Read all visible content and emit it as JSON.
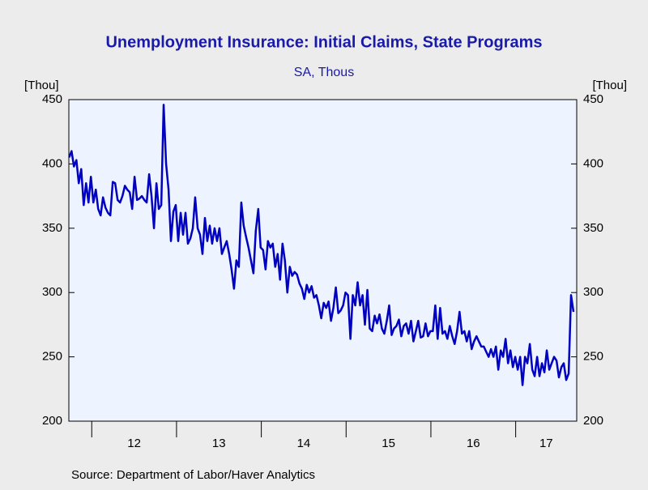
{
  "chart_data": {
    "type": "line",
    "title": "Unemployment Insurance: Initial Claims, State Programs",
    "subtitle": "SA, Thous",
    "ylabel": "[Thou]",
    "source": "Source:  Department of Labor/Haver Analytics",
    "color": "#0000c0",
    "xlim": [
      2011.73,
      2017.72
    ],
    "xticks": [
      {
        "value": 2012,
        "label": "12"
      },
      {
        "value": 2013,
        "label": "13"
      },
      {
        "value": 2014,
        "label": "14"
      },
      {
        "value": 2015,
        "label": "15"
      },
      {
        "value": 2016,
        "label": "16"
      },
      {
        "value": 2017,
        "label": "17"
      }
    ],
    "ylim": [
      200,
      450
    ],
    "yticks": [
      200,
      250,
      300,
      350,
      400,
      450
    ],
    "x": [
      2011.733,
      2011.762,
      2011.79,
      2011.819,
      2011.847,
      2011.876,
      2011.905,
      2011.933,
      2011.962,
      2011.99,
      2012.019,
      2012.048,
      2012.076,
      2012.105,
      2012.133,
      2012.162,
      2012.191,
      2012.219,
      2012.248,
      2012.276,
      2012.305,
      2012.334,
      2012.362,
      2012.391,
      2012.419,
      2012.448,
      2012.477,
      2012.505,
      2012.534,
      2012.562,
      2012.591,
      2012.62,
      2012.648,
      2012.677,
      2012.705,
      2012.734,
      2012.763,
      2012.791,
      2012.82,
      2012.848,
      2012.877,
      2012.906,
      2012.934,
      2012.963,
      2012.991,
      2013.02,
      2013.049,
      2013.077,
      2013.106,
      2013.134,
      2013.163,
      2013.192,
      2013.22,
      2013.249,
      2013.277,
      2013.306,
      2013.335,
      2013.363,
      2013.392,
      2013.42,
      2013.449,
      2013.478,
      2013.506,
      2013.535,
      2013.563,
      2013.592,
      2013.621,
      2013.649,
      2013.678,
      2013.706,
      2013.735,
      2013.764,
      2013.792,
      2013.821,
      2013.849,
      2013.878,
      2013.907,
      2013.935,
      2013.964,
      2013.992,
      2014.021,
      2014.05,
      2014.078,
      2014.107,
      2014.135,
      2014.164,
      2014.193,
      2014.221,
      2014.25,
      2014.278,
      2014.307,
      2014.336,
      2014.364,
      2014.393,
      2014.421,
      2014.45,
      2014.479,
      2014.507,
      2014.536,
      2014.564,
      2014.593,
      2014.622,
      2014.65,
      2014.679,
      2014.707,
      2014.736,
      2014.765,
      2014.793,
      2014.822,
      2014.85,
      2014.879,
      2014.908,
      2014.936,
      2014.965,
      2014.993,
      2015.022,
      2015.051,
      2015.079,
      2015.108,
      2015.136,
      2015.165,
      2015.194,
      2015.222,
      2015.251,
      2015.279,
      2015.308,
      2015.337,
      2015.365,
      2015.394,
      2015.422,
      2015.451,
      2015.48,
      2015.508,
      2015.537,
      2015.565,
      2015.594,
      2015.623,
      2015.651,
      2015.68,
      2015.708,
      2015.737,
      2015.766,
      2015.794,
      2015.823,
      2015.851,
      2015.88,
      2015.909,
      2015.937,
      2015.966,
      2015.994,
      2016.023,
      2016.052,
      2016.08,
      2016.109,
      2016.137,
      2016.166,
      2016.195,
      2016.223,
      2016.252,
      2016.28,
      2016.309,
      2016.338,
      2016.366,
      2016.395,
      2016.423,
      2016.452,
      2016.481,
      2016.509,
      2016.538,
      2016.566,
      2016.595,
      2016.624,
      2016.652,
      2016.681,
      2016.709,
      2016.738,
      2016.767,
      2016.795,
      2016.824,
      2016.852,
      2016.881,
      2016.91,
      2016.938,
      2016.967,
      2016.995,
      2017.024,
      2017.053,
      2017.081,
      2017.11,
      2017.138,
      2017.167,
      2017.196,
      2017.224,
      2017.253,
      2017.281,
      2017.31,
      2017.339,
      2017.367,
      2017.396,
      2017.424,
      2017.453,
      2017.482,
      2017.51,
      2017.539,
      2017.567,
      2017.596,
      2017.625,
      2017.653,
      2017.682
    ],
    "values": [
      405,
      410,
      398,
      403,
      385,
      396,
      368,
      385,
      370,
      390,
      370,
      380,
      365,
      360,
      374,
      366,
      362,
      360,
      386,
      385,
      372,
      370,
      375,
      383,
      380,
      378,
      365,
      390,
      372,
      373,
      375,
      372,
      370,
      392,
      375,
      350,
      385,
      365,
      368,
      446,
      400,
      380,
      340,
      363,
      368,
      340,
      362,
      345,
      362,
      338,
      342,
      350,
      374,
      350,
      345,
      330,
      358,
      340,
      352,
      338,
      350,
      340,
      350,
      330,
      335,
      340,
      330,
      318,
      303,
      325,
      320,
      370,
      352,
      343,
      335,
      325,
      315,
      348,
      365,
      335,
      333,
      318,
      340,
      335,
      338,
      320,
      330,
      310,
      338,
      325,
      300,
      320,
      313,
      316,
      314,
      307,
      303,
      295,
      306,
      300,
      305,
      296,
      298,
      290,
      280,
      292,
      288,
      293,
      278,
      288,
      304,
      284,
      286,
      290,
      300,
      298,
      264,
      298,
      290,
      308,
      290,
      298,
      275,
      302,
      272,
      270,
      282,
      276,
      283,
      272,
      268,
      278,
      290,
      267,
      272,
      274,
      279,
      266,
      274,
      276,
      268,
      278,
      262,
      270,
      278,
      265,
      266,
      276,
      266,
      270,
      270,
      290,
      264,
      288,
      268,
      270,
      264,
      274,
      266,
      260,
      270,
      285,
      268,
      270,
      262,
      270,
      256,
      262,
      266,
      262,
      258,
      258,
      254,
      250,
      256,
      250,
      258,
      240,
      255,
      250,
      264,
      245,
      255,
      242,
      250,
      240,
      250,
      228,
      250,
      245,
      260,
      240,
      235,
      250,
      235,
      245,
      238,
      255,
      240,
      245,
      250,
      247,
      234,
      242,
      245,
      232,
      237,
      298,
      285
    ]
  }
}
